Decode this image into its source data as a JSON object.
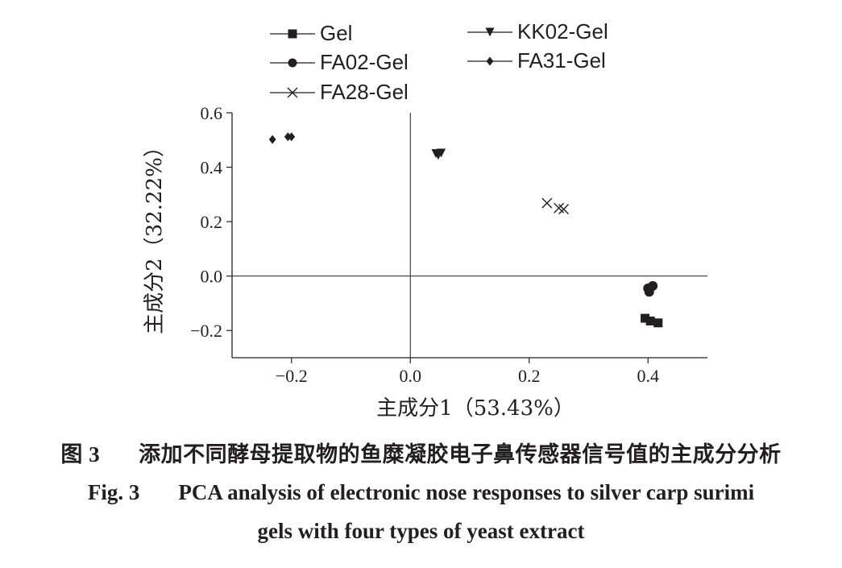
{
  "chart_data": {
    "type": "scatter",
    "xlabel": "主成分1（53.43%）",
    "ylabel": "主成分2（32.22%）",
    "xlim": [
      -0.3,
      0.5
    ],
    "ylim": [
      -0.3,
      0.6
    ],
    "xticks": [
      -0.2,
      0.0,
      0.2,
      0.4
    ],
    "xtick_labels": [
      "−0.2",
      "0.0",
      "0.2",
      "0.4"
    ],
    "yticks": [
      -0.2,
      0.0,
      0.2,
      0.4,
      0.6
    ],
    "ytick_labels": [
      "−0.2",
      "0.0",
      "0.2",
      "0.4",
      "0.6"
    ],
    "grid": false,
    "zero_lines": true,
    "legend_position": "top",
    "series": [
      {
        "name": "Gel",
        "marker": "square",
        "points": [
          [
            0.395,
            -0.155
          ],
          [
            0.404,
            -0.165
          ],
          [
            0.417,
            -0.172
          ]
        ]
      },
      {
        "name": "FA02-Gel",
        "marker": "circle",
        "points": [
          [
            0.4,
            -0.045
          ],
          [
            0.408,
            -0.036
          ],
          [
            0.402,
            -0.058
          ]
        ]
      },
      {
        "name": "FA28-Gel",
        "marker": "x",
        "points": [
          [
            0.23,
            0.268
          ],
          [
            0.25,
            0.25
          ],
          [
            0.258,
            0.246
          ]
        ]
      },
      {
        "name": "KK02-Gel",
        "marker": "triangle-down",
        "points": [
          [
            0.043,
            0.45
          ],
          [
            0.052,
            0.452
          ],
          [
            0.047,
            0.444
          ]
        ]
      },
      {
        "name": "FA31-Gel",
        "marker": "diamond",
        "points": [
          [
            -0.232,
            0.502
          ],
          [
            -0.206,
            0.512
          ],
          [
            -0.2,
            0.512
          ]
        ]
      }
    ]
  },
  "caption": {
    "cn_label": "图 3",
    "cn_text": "添加不同酵母提取物的鱼糜凝胶电子鼻传感器信号值的主成分分析",
    "en_label": "Fig. 3",
    "en_text_line1": "PCA analysis of electronic nose responses to silver carp surimi",
    "en_text_line2": "gels with four types of yeast extract"
  }
}
